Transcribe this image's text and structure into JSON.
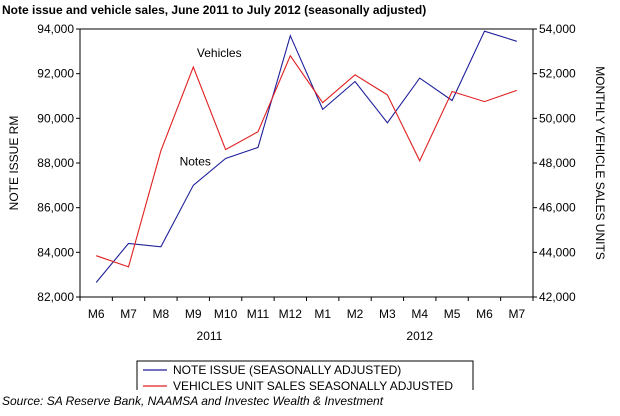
{
  "chart_data": {
    "type": "line",
    "title": "Note issue and vehicle sales, June 2011 to July 2012 (seasonally adjusted)",
    "categories": [
      "M6",
      "M7",
      "M8",
      "M9",
      "M10",
      "M11",
      "M12",
      "M1",
      "M2",
      "M3",
      "M4",
      "M5",
      "M6",
      "M7"
    ],
    "year_labels": [
      {
        "label": "2011",
        "category_index": 3.5
      },
      {
        "label": "2012",
        "category_index": 10
      }
    ],
    "left_axis": {
      "label": "NOTE ISSUE RM",
      "min": 82000,
      "max": 94000,
      "ticks": [
        "82,000",
        "84,000",
        "86,000",
        "88,000",
        "90,000",
        "92,000",
        "94,000"
      ]
    },
    "right_axis": {
      "label": "MONTHLY VEHICLE SALES UNITS",
      "min": 42000,
      "max": 54000,
      "ticks": [
        "42,000",
        "44,000",
        "46,000",
        "48,000",
        "50,000",
        "52,000",
        "54,000"
      ]
    },
    "series": [
      {
        "name": "NOTE ISSUE (SEASONALLY ADJUSTED)",
        "axis": "left",
        "color": "#1f1f9a",
        "values": [
          82650,
          84400,
          84250,
          87000,
          88200,
          88700,
          93700,
          90400,
          91650,
          89800,
          91800,
          90800,
          93900,
          93450
        ]
      },
      {
        "name": "VEHICLES UNIT SALES SEASONALLY ADJUSTED",
        "axis": "right",
        "color": "#e02020",
        "values": [
          43850,
          43350,
          48550,
          52300,
          48600,
          49400,
          52800,
          50700,
          51950,
          51050,
          48100,
          51200,
          50750,
          51250
        ]
      }
    ],
    "annotations": [
      {
        "text": "Vehicles",
        "series_index": 1
      },
      {
        "text": "Notes",
        "series_index": 0
      }
    ],
    "grid": false,
    "legend_position": "bottom"
  },
  "source": "Source: SA Reserve Bank, NAAMSA and Investec Wealth & Investment"
}
